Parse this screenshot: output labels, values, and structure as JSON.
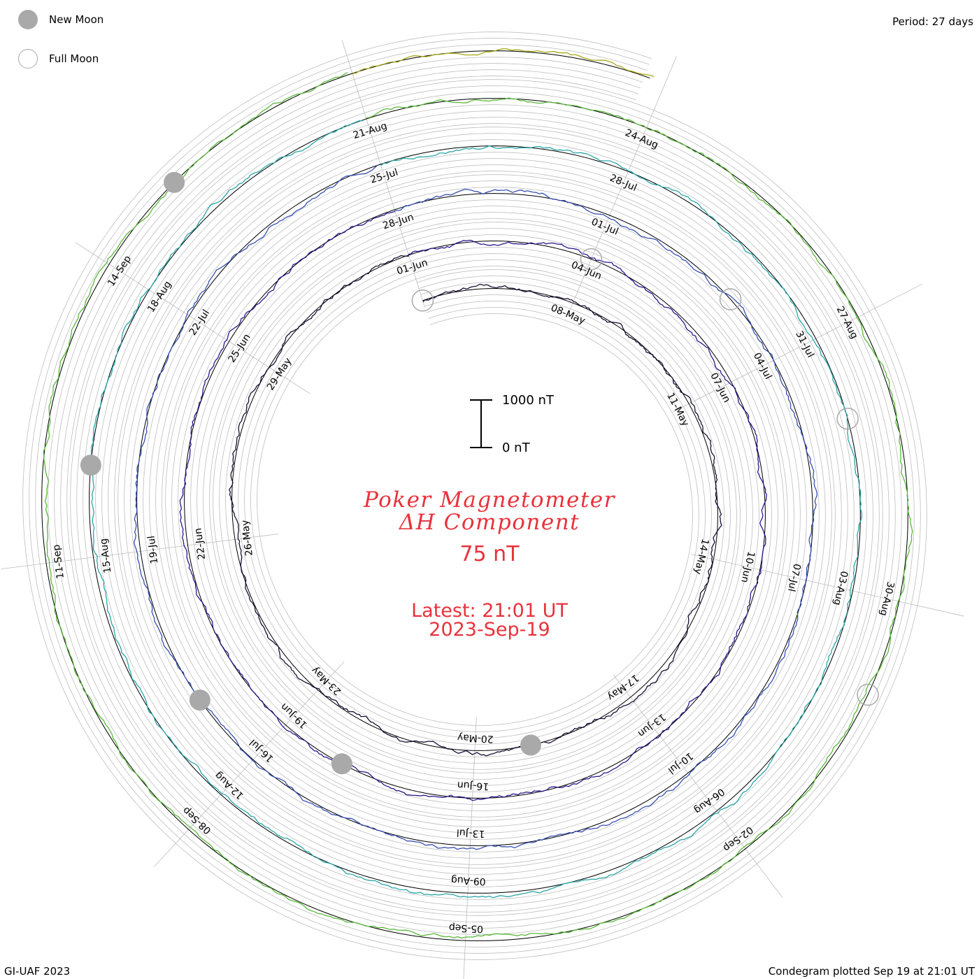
{
  "legend": {
    "new_moon_label": "New Moon",
    "full_moon_label": "Full Moon",
    "new_moon_color": "#a9a9a9"
  },
  "header": {
    "period_text": "Period: 27 days"
  },
  "center": {
    "title_line1": "Poker Magnetometer",
    "title_line2": "ΔH Component",
    "baseline_value": "75 nT",
    "latest_line1": "Latest: 21:01 UT",
    "latest_line2": "2023-Sep-19"
  },
  "scale_bar": {
    "top_label": "1000 nT",
    "bottom_label": "0 nT"
  },
  "footer": {
    "credit": "GI-UAF 2023",
    "plotted_text": "Condegram plotted Sep 19 at 21:01 UT"
  },
  "colors": {
    "text_red": "#e8323c",
    "grid": "#bdbdbd",
    "rotations": [
      "#1a0f33",
      "#2a1a8c",
      "#3650b0",
      "#2aa5a8",
      "#5ab83a",
      "#a8a818",
      "#c5621a",
      "#b01818"
    ]
  },
  "chart_data": {
    "type": "line",
    "period_days": 27,
    "y_unit": "nT",
    "scale_bar_nT": [
      0,
      1000
    ],
    "rotations": [
      {
        "start": "2023-05-05",
        "date_labels": [
          "08-May",
          "11-May",
          "14-May",
          "17-May",
          "20-May"
        ]
      },
      {
        "start": "2023-05-20",
        "date_labels": [
          "23-May",
          "26-May",
          "29-May",
          "01-Jun",
          "04-Jun",
          "07-Jun",
          "10-Jun",
          "13-Jun",
          "16-Jun"
        ]
      },
      {
        "start": "2023-06-16",
        "date_labels": [
          "19-Jun",
          "22-Jun",
          "25-Jun",
          "28-Jun",
          "01-Jul",
          "04-Jul",
          "07-Jul",
          "10-Jul",
          "13-Jul"
        ]
      },
      {
        "start": "2023-07-13",
        "date_labels": [
          "16-Jul",
          "19-Jul",
          "22-Jul",
          "25-Jul",
          "28-Jul",
          "31-Jul",
          "03-Aug",
          "06-Aug",
          "09-Aug"
        ]
      },
      {
        "start": "2023-08-09",
        "date_labels": [
          "12-Aug",
          "15-Aug",
          "18-Aug",
          "21-Aug",
          "24-Aug",
          "27-Aug",
          "30-Aug",
          "02-Sep",
          "05-Sep"
        ]
      },
      {
        "start": "2023-09-05",
        "date_labels": [
          "08-Sep",
          "11-Sep",
          "14-Sep"
        ]
      }
    ],
    "new_moons": [
      "2023-05-19",
      "2023-06-18",
      "2023-07-17",
      "2023-08-16",
      "2023-09-15"
    ],
    "full_moons": [
      "2023-05-05",
      "2023-06-04",
      "2023-07-03",
      "2023-08-01",
      "2023-08-31"
    ],
    "latest": "2023-09-19T21:01Z"
  }
}
